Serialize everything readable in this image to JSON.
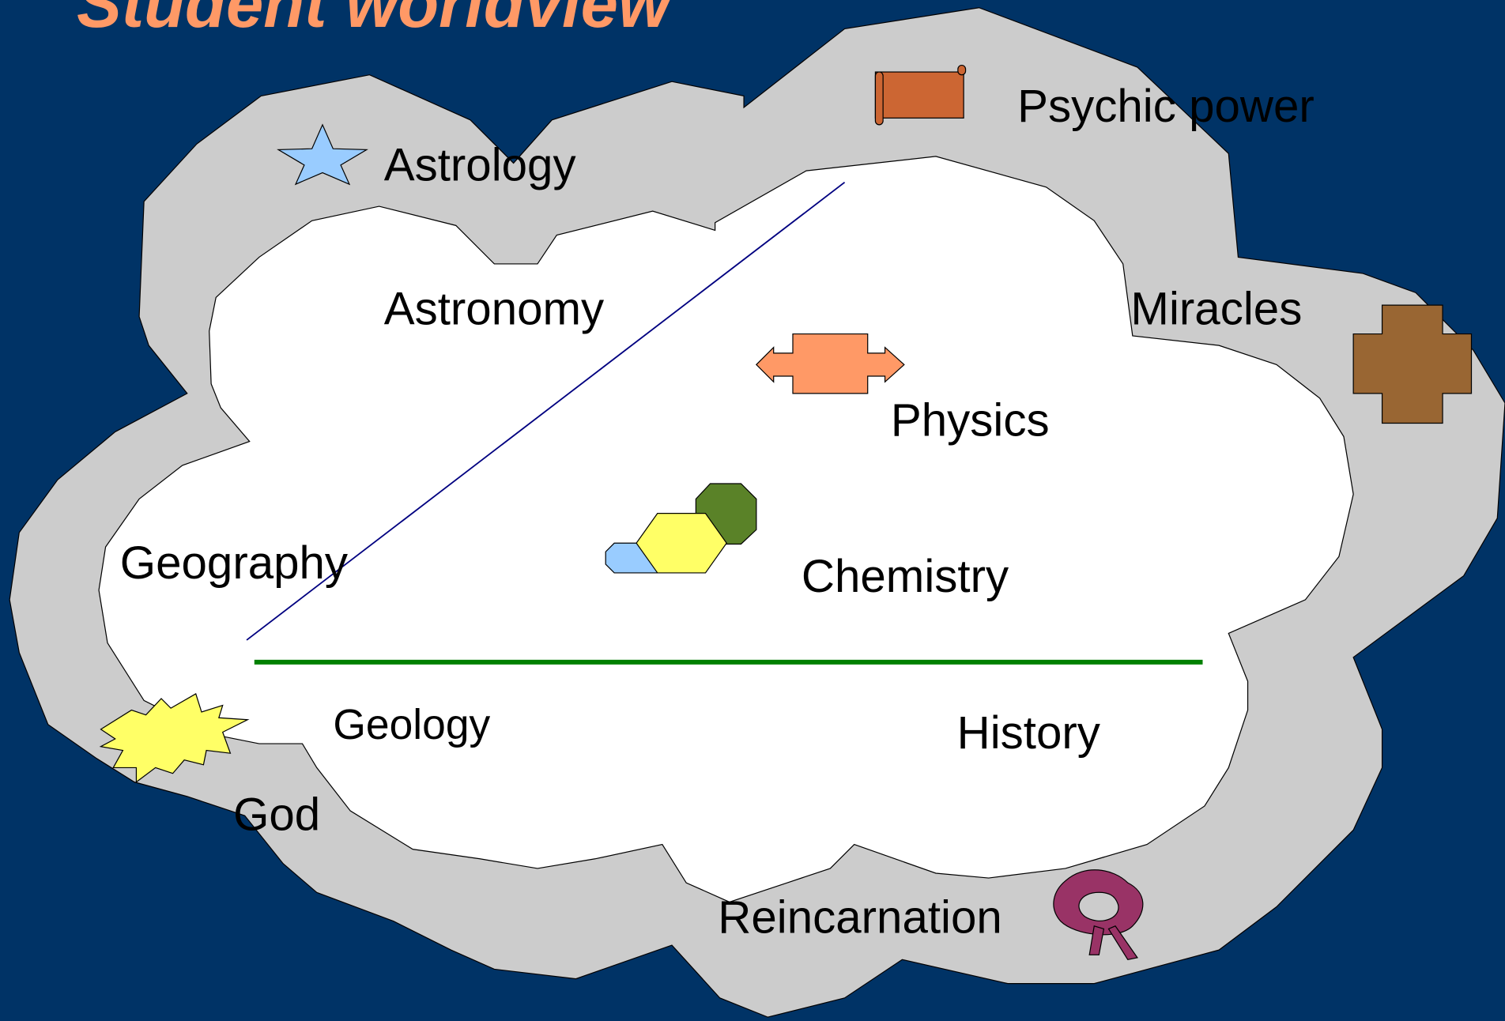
{
  "title": "Student worldview",
  "labels": [
    "Psychic power",
    "Astrology",
    "Astronomy",
    "Miracles",
    "Physics",
    "Geography",
    "Chemistry",
    "Geology",
    "History",
    "God",
    "Reincarnation"
  ]
}
